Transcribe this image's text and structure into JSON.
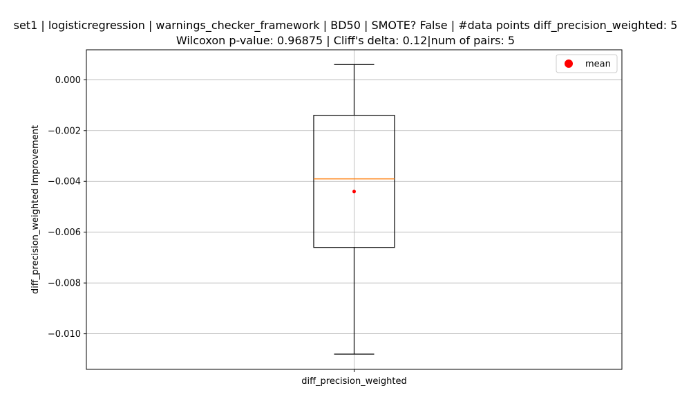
{
  "chart_data": {
    "type": "box",
    "title_line1": "set1 | logisticregression | warnings_checker_framework | BD50 | SMOTE? False | #data points diff_precision_weighted: 5",
    "title_line2": "Wilcoxon p-value: 0.96875 | Cliff's delta: 0.12|num of pairs: 5",
    "xlabel": "",
    "ylabel": "diff_precision_weighted Improvement",
    "categories": [
      "diff_precision_weighted"
    ],
    "ylim": [
      -0.0114,
      0.00118
    ],
    "yticks": [
      0.0,
      -0.002,
      -0.004,
      -0.006,
      -0.008,
      -0.01
    ],
    "ytick_labels": [
      "0.000",
      "−0.002",
      "−0.004",
      "−0.006",
      "−0.008",
      "−0.010"
    ],
    "grid": true,
    "legend_position": "top-right",
    "legend": [
      {
        "label": "mean",
        "color": "#ff0000",
        "marker": "circle"
      }
    ],
    "box": {
      "whisker_low": -0.0108,
      "q1": -0.0066,
      "median": -0.0039,
      "q3": -0.0014,
      "whisker_high": 0.0006,
      "mean": -0.0044
    },
    "colors": {
      "box": "#000000",
      "median": "#ff7f0e",
      "mean": "#ff0000",
      "grid": "#b0b0b0"
    }
  }
}
